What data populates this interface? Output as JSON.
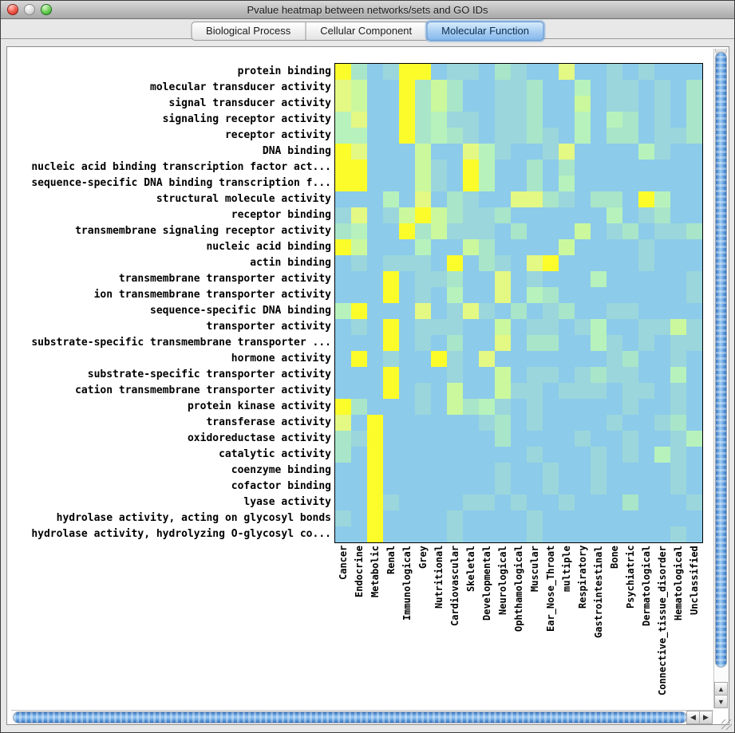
{
  "window": {
    "title": "Pvalue heatmap between networks/sets and GO IDs",
    "controls": {
      "close": "close-button",
      "minimize": "minimize-button",
      "zoom": "zoom-button"
    }
  },
  "tabs": [
    {
      "label": "Biological Process",
      "selected": false
    },
    {
      "label": "Cellular Component",
      "selected": false
    },
    {
      "label": "Molecular Function",
      "selected": true
    }
  ],
  "icons": {
    "up": "▲",
    "down": "▼",
    "left": "◀",
    "right": "▶"
  },
  "chart_data": {
    "type": "heatmap",
    "title": "Pvalue heatmap between networks/sets and GO IDs",
    "note": "cell values are color levels 0-6; 0 = light blue (high p-value), 6 = bright yellow (low p-value)",
    "palette": [
      "#8CCBEA",
      "#9AD6DC",
      "#A9E5C9",
      "#B7F2BD",
      "#CBF89D",
      "#E4F884",
      "#FCFC2B"
    ],
    "rows": [
      "protein binding",
      "molecular transducer activity",
      "signal transducer activity",
      "signaling receptor activity",
      "receptor activity",
      "DNA binding",
      "nucleic acid binding transcription factor act...",
      "sequence-specific DNA binding transcription f...",
      "structural molecule activity",
      "receptor binding",
      "transmembrane signaling receptor activity",
      "nucleic acid binding",
      "actin binding",
      "transmembrane transporter activity",
      "ion transmembrane transporter activity",
      "sequence-specific DNA binding",
      "transporter activity",
      "substrate-specific transmembrane transporter ...",
      "hormone activity",
      "substrate-specific transporter activity",
      "cation transmembrane transporter activity",
      "protein kinase activity",
      "transferase activity",
      "oxidoreductase activity",
      "catalytic activity",
      "coenzyme binding",
      "cofactor binding",
      "lyase activity",
      "hydrolase activity, acting on glycosyl bonds",
      "hydrolase activity, hydrolyzing O-glycosyl co..."
    ],
    "columns": [
      "Cancer",
      "Endocrine",
      "Metabolic",
      "Renal",
      "Immunological",
      "Grey",
      "Nutritional",
      "Cardiovascular",
      "Skeletal",
      "Developmental",
      "Neurological",
      "Ophthamological",
      "Muscular",
      "Ear_Nose_Throat",
      "multiple",
      "Respiratory",
      "Gastrointestinal",
      "Bone",
      "Psychiatric",
      "Dermatological",
      "Connective_tissue_disorder",
      "Hematological",
      "Unclassified"
    ],
    "values": [
      [
        6,
        2,
        0,
        1,
        6,
        6,
        0,
        1,
        1,
        0,
        2,
        1,
        0,
        0,
        5,
        0,
        0,
        1,
        0,
        1,
        0,
        0,
        0
      ],
      [
        5,
        4,
        0,
        0,
        6,
        2,
        4,
        2,
        0,
        0,
        1,
        1,
        2,
        0,
        0,
        3,
        0,
        1,
        1,
        0,
        1,
        0,
        2
      ],
      [
        5,
        4,
        0,
        0,
        6,
        2,
        4,
        2,
        0,
        0,
        1,
        1,
        2,
        0,
        0,
        4,
        0,
        1,
        1,
        0,
        1,
        0,
        2
      ],
      [
        3,
        5,
        0,
        0,
        6,
        2,
        3,
        1,
        1,
        0,
        1,
        1,
        2,
        0,
        0,
        3,
        0,
        3,
        2,
        0,
        1,
        0,
        2
      ],
      [
        3,
        3,
        0,
        0,
        6,
        2,
        3,
        2,
        1,
        0,
        1,
        1,
        2,
        1,
        0,
        3,
        0,
        2,
        2,
        0,
        1,
        1,
        2
      ],
      [
        6,
        5,
        0,
        0,
        0,
        4,
        0,
        0,
        5,
        3,
        1,
        0,
        0,
        1,
        5,
        0,
        0,
        0,
        0,
        3,
        1,
        0,
        0
      ],
      [
        6,
        6,
        0,
        0,
        0,
        4,
        1,
        0,
        6,
        3,
        0,
        0,
        2,
        0,
        2,
        0,
        0,
        0,
        0,
        0,
        0,
        0,
        0
      ],
      [
        6,
        6,
        0,
        0,
        0,
        4,
        1,
        0,
        6,
        3,
        0,
        0,
        2,
        0,
        3,
        0,
        0,
        0,
        0,
        0,
        0,
        0,
        0
      ],
      [
        0,
        0,
        0,
        3,
        0,
        5,
        0,
        2,
        1,
        0,
        0,
        5,
        5,
        2,
        1,
        0,
        2,
        2,
        0,
        6,
        3,
        0,
        0
      ],
      [
        1,
        5,
        0,
        1,
        4,
        6,
        4,
        2,
        1,
        1,
        2,
        0,
        0,
        0,
        0,
        0,
        0,
        3,
        0,
        1,
        2,
        0,
        0
      ],
      [
        2,
        3,
        0,
        0,
        6,
        2,
        4,
        1,
        1,
        1,
        0,
        2,
        0,
        0,
        0,
        4,
        0,
        1,
        2,
        0,
        1,
        1,
        2
      ],
      [
        6,
        4,
        0,
        0,
        0,
        3,
        0,
        0,
        4,
        2,
        0,
        0,
        0,
        0,
        4,
        0,
        0,
        0,
        0,
        1,
        0,
        0,
        0
      ],
      [
        0,
        1,
        0,
        1,
        1,
        1,
        0,
        6,
        0,
        2,
        1,
        0,
        5,
        6,
        0,
        0,
        0,
        0,
        0,
        1,
        0,
        0,
        0
      ],
      [
        0,
        0,
        0,
        6,
        0,
        1,
        1,
        2,
        0,
        0,
        5,
        0,
        1,
        0,
        0,
        0,
        3,
        0,
        0,
        0,
        0,
        0,
        1
      ],
      [
        0,
        0,
        0,
        6,
        0,
        1,
        0,
        3,
        0,
        0,
        5,
        0,
        3,
        2,
        0,
        0,
        0,
        0,
        0,
        0,
        0,
        0,
        1
      ],
      [
        3,
        6,
        0,
        0,
        0,
        5,
        0,
        1,
        5,
        1,
        0,
        2,
        0,
        1,
        2,
        0,
        0,
        1,
        1,
        0,
        0,
        0,
        0
      ],
      [
        0,
        1,
        0,
        6,
        0,
        1,
        1,
        1,
        0,
        0,
        4,
        0,
        1,
        1,
        0,
        1,
        3,
        0,
        0,
        1,
        1,
        4,
        1
      ],
      [
        0,
        0,
        0,
        6,
        0,
        1,
        0,
        2,
        0,
        0,
        5,
        0,
        2,
        2,
        0,
        0,
        3,
        1,
        0,
        1,
        0,
        1,
        1
      ],
      [
        0,
        6,
        0,
        1,
        0,
        0,
        6,
        1,
        0,
        5,
        0,
        0,
        0,
        0,
        0,
        0,
        0,
        1,
        2,
        0,
        0,
        1,
        0
      ],
      [
        0,
        0,
        0,
        6,
        0,
        0,
        0,
        1,
        0,
        0,
        4,
        0,
        1,
        1,
        0,
        1,
        2,
        1,
        1,
        0,
        0,
        3,
        0
      ],
      [
        0,
        0,
        0,
        6,
        0,
        1,
        0,
        4,
        0,
        0,
        4,
        1,
        1,
        0,
        1,
        1,
        1,
        0,
        1,
        1,
        0,
        1,
        0
      ],
      [
        6,
        2,
        0,
        0,
        0,
        1,
        0,
        4,
        2,
        3,
        1,
        0,
        1,
        0,
        0,
        0,
        0,
        0,
        1,
        0,
        0,
        1,
        0
      ],
      [
        5,
        0,
        6,
        0,
        0,
        0,
        0,
        0,
        0,
        1,
        2,
        0,
        1,
        0,
        0,
        0,
        0,
        1,
        0,
        0,
        1,
        2,
        0
      ],
      [
        2,
        1,
        6,
        0,
        0,
        0,
        0,
        0,
        0,
        0,
        2,
        0,
        0,
        0,
        0,
        1,
        0,
        0,
        1,
        0,
        0,
        1,
        3
      ],
      [
        2,
        0,
        6,
        0,
        0,
        0,
        0,
        0,
        0,
        0,
        0,
        0,
        1,
        0,
        0,
        0,
        1,
        0,
        1,
        0,
        3,
        1,
        0
      ],
      [
        0,
        0,
        6,
        0,
        0,
        0,
        0,
        0,
        0,
        0,
        1,
        0,
        0,
        1,
        0,
        0,
        1,
        0,
        0,
        0,
        0,
        1,
        0
      ],
      [
        0,
        0,
        6,
        0,
        0,
        0,
        0,
        0,
        0,
        0,
        1,
        0,
        0,
        1,
        0,
        0,
        1,
        0,
        0,
        0,
        0,
        1,
        0
      ],
      [
        0,
        0,
        6,
        1,
        0,
        0,
        0,
        0,
        1,
        1,
        0,
        1,
        0,
        0,
        1,
        0,
        0,
        0,
        2,
        0,
        0,
        0,
        1
      ],
      [
        1,
        0,
        6,
        0,
        0,
        0,
        0,
        1,
        0,
        0,
        0,
        0,
        1,
        0,
        0,
        0,
        0,
        0,
        0,
        0,
        0,
        0,
        0
      ],
      [
        0,
        0,
        6,
        0,
        0,
        0,
        0,
        1,
        0,
        0,
        0,
        0,
        1,
        0,
        0,
        0,
        0,
        0,
        0,
        0,
        0,
        1,
        0
      ]
    ]
  }
}
